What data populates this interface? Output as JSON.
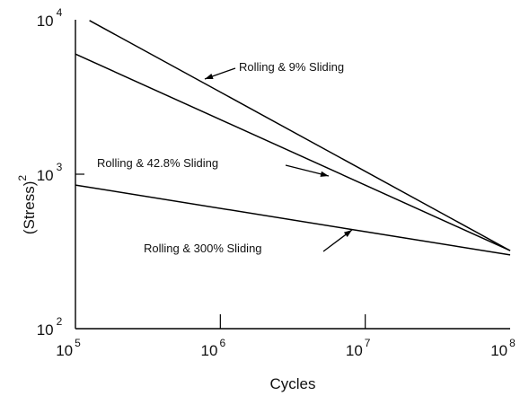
{
  "chart_data": {
    "type": "line",
    "title": "",
    "xlabel": "Cycles",
    "ylabel": "(Stress)",
    "ylabel_exponent": "2",
    "x_scale": "log",
    "y_scale": "log",
    "xlim": [
      100000,
      100000000
    ],
    "ylim": [
      100,
      10000
    ],
    "x_ticks": [
      {
        "value": 100000,
        "base": "10",
        "exp": "5"
      },
      {
        "value": 1000000,
        "base": "10",
        "exp": "6"
      },
      {
        "value": 10000000,
        "base": "10",
        "exp": "7"
      },
      {
        "value": 100000000,
        "base": "10",
        "exp": "8"
      }
    ],
    "y_ticks": [
      {
        "value": 100,
        "base": "10",
        "exp": "2"
      },
      {
        "value": 1000,
        "base": "10",
        "exp": "3"
      },
      {
        "value": 10000,
        "base": "10",
        "exp": "4"
      }
    ],
    "grid": false,
    "series": [
      {
        "name": "Rolling & 9% Sliding",
        "x": [
          125000,
          100000000
        ],
        "y": [
          9900,
          320
        ]
      },
      {
        "name": "Rolling & 42.8% Sliding",
        "x": [
          100000,
          100000000
        ],
        "y": [
          6000,
          320
        ]
      },
      {
        "name": "Rolling & 300% Sliding",
        "x": [
          100000,
          100000000
        ],
        "y": [
          850,
          300
        ]
      }
    ],
    "annotations": [
      {
        "text": "Rolling & 9% Sliding",
        "series": 0
      },
      {
        "text": "Rolling & 42.8% Sliding",
        "series": 1
      },
      {
        "text": "Rolling & 300% Sliding",
        "series": 2
      }
    ]
  }
}
